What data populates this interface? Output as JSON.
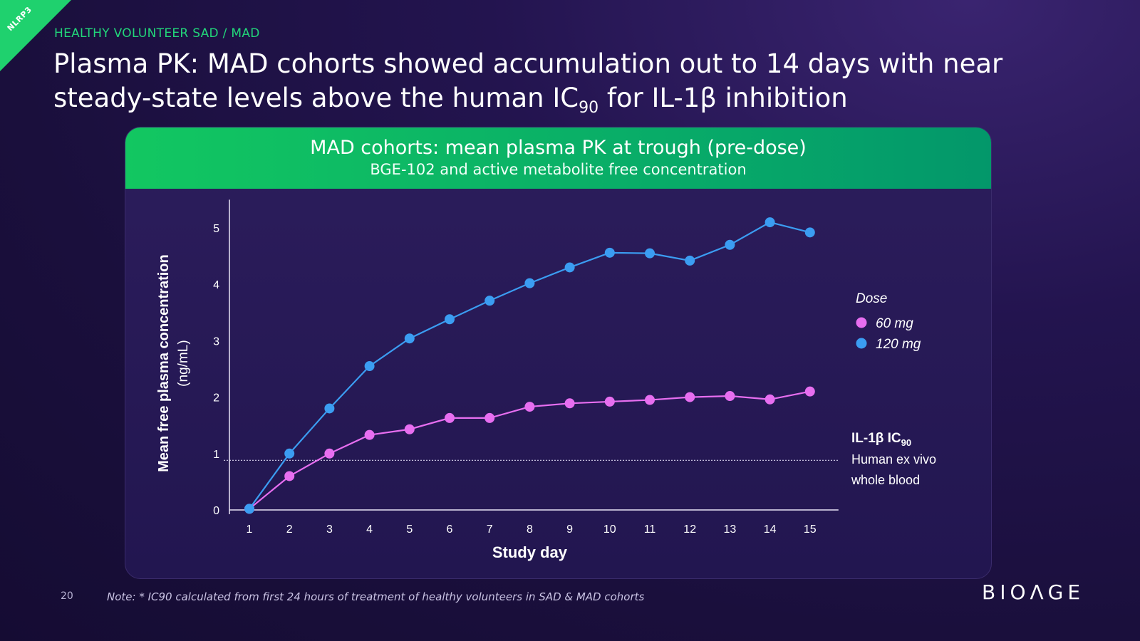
{
  "corner_tag": "NLRP3",
  "eyebrow": "HEALTHY VOLUNTEER SAD / MAD",
  "headline": {
    "line1": "Plasma PK: MAD cohorts showed accumulation out to 14 days with near",
    "line2_pre": "steady-state levels above the human IC",
    "line2_sub": "90",
    "line2_post": " for IL-1β inhibition"
  },
  "panel": {
    "title": "MAD cohorts: mean plasma PK at trough (pre-dose)",
    "subtitle": "BGE-102 and active metabolite free concentration"
  },
  "chart_data": {
    "type": "line",
    "xlabel": "Study day",
    "ylabel_line1": "Mean free plasma concentration",
    "ylabel_line2": "(ng/mL)",
    "x": [
      1,
      2,
      3,
      4,
      5,
      6,
      7,
      8,
      9,
      10,
      11,
      12,
      13,
      14,
      15
    ],
    "ylim": [
      0,
      5.2
    ],
    "yticks": [
      0,
      1,
      2,
      3,
      4,
      5
    ],
    "legend_title": "Dose",
    "series": [
      {
        "name": "60 mg",
        "color": "#e76ef0",
        "values": [
          0.02,
          0.6,
          1.0,
          1.33,
          1.43,
          1.63,
          1.63,
          1.83,
          1.89,
          1.92,
          1.95,
          2.0,
          2.02,
          1.96,
          2.1
        ]
      },
      {
        "name": "120 mg",
        "color": "#3b9df2",
        "values": [
          0.02,
          1.0,
          1.8,
          2.55,
          3.04,
          3.38,
          3.71,
          4.02,
          4.3,
          4.56,
          4.55,
          4.42,
          4.7,
          5.1,
          4.92
        ]
      }
    ],
    "reference_line": {
      "value": 0.88,
      "label_main": "IL-1β IC",
      "label_sub": "90",
      "label_line2": "Human ex vivo",
      "label_line3": "whole blood"
    }
  },
  "footer": {
    "page": "20",
    "note": "Note: * IC90 calculated from first 24 hours of treatment of healthy volunteers in SAD & MAD cohorts"
  },
  "logo": "BIOΛGE"
}
